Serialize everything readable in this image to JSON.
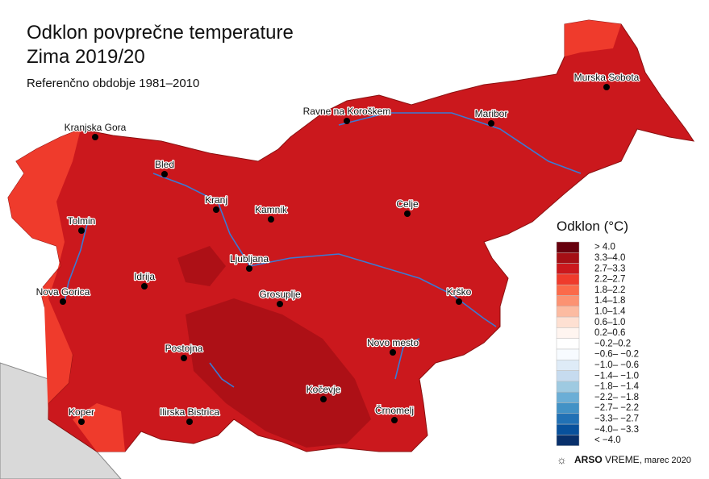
{
  "header": {
    "title": "Odklon povprečne temperature",
    "subtitle": "Zima 2019/20",
    "reference": "Referenčno obdobje 1981–2010"
  },
  "cities": [
    "Murska Sobota",
    "Ravne na Koroškem",
    "Maribor",
    "Kranjska Gora",
    "Bled",
    "Kranj",
    "Kamnik",
    "Celje",
    "Tolmin",
    "Ljubljana",
    "Idrija",
    "Nova Gorica",
    "Grosuplje",
    "Krško",
    "Novo mesto",
    "Postojna",
    "Kočevje",
    "Ilirska Bistrica",
    "Koper",
    "Črnomelj"
  ],
  "legend": {
    "title": "Odklon (°C)",
    "items": [
      {
        "label": "> 4.0",
        "color": "#67000d"
      },
      {
        "label": "3.3–4.0",
        "color": "#a50f15"
      },
      {
        "label": "2.7–3.3",
        "color": "#cb181d"
      },
      {
        "label": "2.2–2.7",
        "color": "#ef3b2c"
      },
      {
        "label": "1.8–2.2",
        "color": "#fb6a4a"
      },
      {
        "label": "1.4–1.8",
        "color": "#fc9272"
      },
      {
        "label": "1.0–1.4",
        "color": "#fcbba1"
      },
      {
        "label": "0.6–1.0",
        "color": "#fee0d2"
      },
      {
        "label": "0.2–0.6",
        "color": "#fff5f0"
      },
      {
        "label": "−0.2–0.2",
        "color": "#ffffff"
      },
      {
        "label": "−0.6– −0.2",
        "color": "#f7fbff"
      },
      {
        "label": "−1.0– −0.6",
        "color": "#deebf7"
      },
      {
        "label": "−1.4– −1.0",
        "color": "#c6dbef"
      },
      {
        "label": "−1.8– −1.4",
        "color": "#9ecae1"
      },
      {
        "label": "−2.2– −1.8",
        "color": "#6baed6"
      },
      {
        "label": "−2.7– −2.2",
        "color": "#4292c6"
      },
      {
        "label": "−3.3– −2.7",
        "color": "#2171b5"
      },
      {
        "label": "−4.0– −3.3",
        "color": "#08519c"
      },
      {
        "label": "< −4.0",
        "color": "#08306b"
      }
    ]
  },
  "footer": {
    "brand": "ARSO",
    "product": "VREME",
    "date": ", marec 2020"
  }
}
